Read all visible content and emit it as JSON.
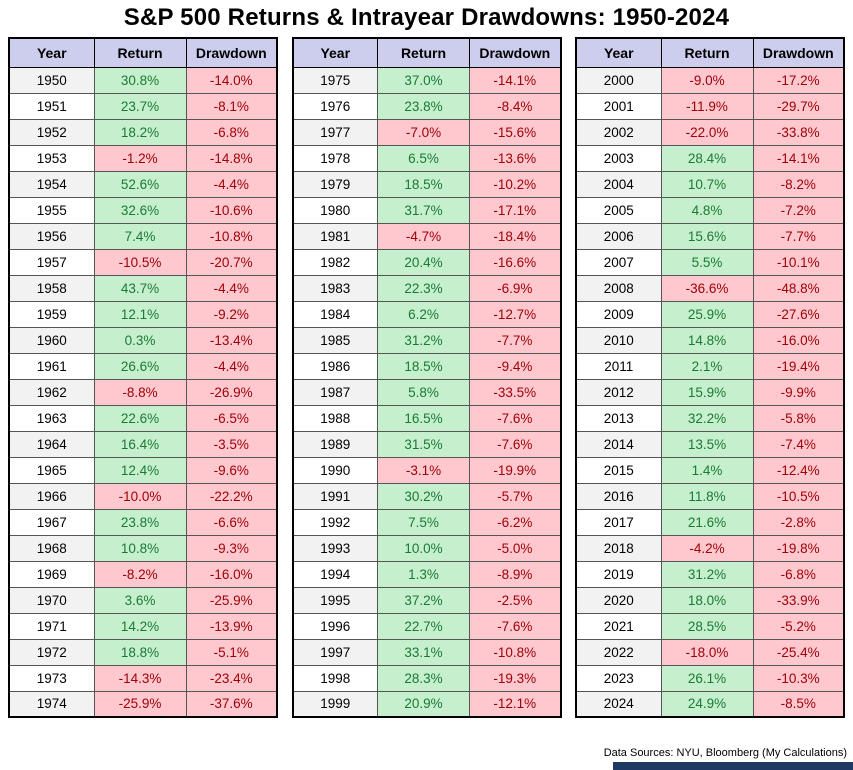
{
  "title": "S&P 500 Returns & Intrayear Drawdowns: 1950-2024",
  "footer": "Data Sources: NYU, Bloomberg (My Calculations)",
  "columns": [
    "Year",
    "Return",
    "Drawdown"
  ],
  "colors": {
    "header_bg": "#cdcdee",
    "positive_bg": "#c6efce",
    "positive_text": "#1a7a33",
    "negative_bg": "#ffc7ce",
    "negative_text": "#9c0006",
    "bottom_bar": "#1f3864"
  },
  "chart_data": {
    "type": "table",
    "title": "S&P 500 Returns & Intrayear Drawdowns: 1950-2024",
    "columns": [
      "Year",
      "Return",
      "Drawdown"
    ],
    "groups": [
      {
        "years": "1950-1974",
        "rows": [
          [
            "1950",
            "30.8%",
            "-14.0%"
          ],
          [
            "1951",
            "23.7%",
            "-8.1%"
          ],
          [
            "1952",
            "18.2%",
            "-6.8%"
          ],
          [
            "1953",
            "-1.2%",
            "-14.8%"
          ],
          [
            "1954",
            "52.6%",
            "-4.4%"
          ],
          [
            "1955",
            "32.6%",
            "-10.6%"
          ],
          [
            "1956",
            "7.4%",
            "-10.8%"
          ],
          [
            "1957",
            "-10.5%",
            "-20.7%"
          ],
          [
            "1958",
            "43.7%",
            "-4.4%"
          ],
          [
            "1959",
            "12.1%",
            "-9.2%"
          ],
          [
            "1960",
            "0.3%",
            "-13.4%"
          ],
          [
            "1961",
            "26.6%",
            "-4.4%"
          ],
          [
            "1962",
            "-8.8%",
            "-26.9%"
          ],
          [
            "1963",
            "22.6%",
            "-6.5%"
          ],
          [
            "1964",
            "16.4%",
            "-3.5%"
          ],
          [
            "1965",
            "12.4%",
            "-9.6%"
          ],
          [
            "1966",
            "-10.0%",
            "-22.2%"
          ],
          [
            "1967",
            "23.8%",
            "-6.6%"
          ],
          [
            "1968",
            "10.8%",
            "-9.3%"
          ],
          [
            "1969",
            "-8.2%",
            "-16.0%"
          ],
          [
            "1970",
            "3.6%",
            "-25.9%"
          ],
          [
            "1971",
            "14.2%",
            "-13.9%"
          ],
          [
            "1972",
            "18.8%",
            "-5.1%"
          ],
          [
            "1973",
            "-14.3%",
            "-23.4%"
          ],
          [
            "1974",
            "-25.9%",
            "-37.6%"
          ]
        ]
      },
      {
        "years": "1975-1999",
        "rows": [
          [
            "1975",
            "37.0%",
            "-14.1%"
          ],
          [
            "1976",
            "23.8%",
            "-8.4%"
          ],
          [
            "1977",
            "-7.0%",
            "-15.6%"
          ],
          [
            "1978",
            "6.5%",
            "-13.6%"
          ],
          [
            "1979",
            "18.5%",
            "-10.2%"
          ],
          [
            "1980",
            "31.7%",
            "-17.1%"
          ],
          [
            "1981",
            "-4.7%",
            "-18.4%"
          ],
          [
            "1982",
            "20.4%",
            "-16.6%"
          ],
          [
            "1983",
            "22.3%",
            "-6.9%"
          ],
          [
            "1984",
            "6.2%",
            "-12.7%"
          ],
          [
            "1985",
            "31.2%",
            "-7.7%"
          ],
          [
            "1986",
            "18.5%",
            "-9.4%"
          ],
          [
            "1987",
            "5.8%",
            "-33.5%"
          ],
          [
            "1988",
            "16.5%",
            "-7.6%"
          ],
          [
            "1989",
            "31.5%",
            "-7.6%"
          ],
          [
            "1990",
            "-3.1%",
            "-19.9%"
          ],
          [
            "1991",
            "30.2%",
            "-5.7%"
          ],
          [
            "1992",
            "7.5%",
            "-6.2%"
          ],
          [
            "1993",
            "10.0%",
            "-5.0%"
          ],
          [
            "1994",
            "1.3%",
            "-8.9%"
          ],
          [
            "1995",
            "37.2%",
            "-2.5%"
          ],
          [
            "1996",
            "22.7%",
            "-7.6%"
          ],
          [
            "1997",
            "33.1%",
            "-10.8%"
          ],
          [
            "1998",
            "28.3%",
            "-19.3%"
          ],
          [
            "1999",
            "20.9%",
            "-12.1%"
          ]
        ]
      },
      {
        "years": "2000-2024",
        "rows": [
          [
            "2000",
            "-9.0%",
            "-17.2%"
          ],
          [
            "2001",
            "-11.9%",
            "-29.7%"
          ],
          [
            "2002",
            "-22.0%",
            "-33.8%"
          ],
          [
            "2003",
            "28.4%",
            "-14.1%"
          ],
          [
            "2004",
            "10.7%",
            "-8.2%"
          ],
          [
            "2005",
            "4.8%",
            "-7.2%"
          ],
          [
            "2006",
            "15.6%",
            "-7.7%"
          ],
          [
            "2007",
            "5.5%",
            "-10.1%"
          ],
          [
            "2008",
            "-36.6%",
            "-48.8%"
          ],
          [
            "2009",
            "25.9%",
            "-27.6%"
          ],
          [
            "2010",
            "14.8%",
            "-16.0%"
          ],
          [
            "2011",
            "2.1%",
            "-19.4%"
          ],
          [
            "2012",
            "15.9%",
            "-9.9%"
          ],
          [
            "2013",
            "32.2%",
            "-5.8%"
          ],
          [
            "2014",
            "13.5%",
            "-7.4%"
          ],
          [
            "2015",
            "1.4%",
            "-12.4%"
          ],
          [
            "2016",
            "11.8%",
            "-10.5%"
          ],
          [
            "2017",
            "21.6%",
            "-2.8%"
          ],
          [
            "2018",
            "-4.2%",
            "-19.8%"
          ],
          [
            "2019",
            "31.2%",
            "-6.8%"
          ],
          [
            "2020",
            "18.0%",
            "-33.9%"
          ],
          [
            "2021",
            "28.5%",
            "-5.2%"
          ],
          [
            "2022",
            "-18.0%",
            "-25.4%"
          ],
          [
            "2023",
            "26.1%",
            "-10.3%"
          ],
          [
            "2024",
            "24.9%",
            "-8.5%"
          ]
        ]
      }
    ]
  }
}
